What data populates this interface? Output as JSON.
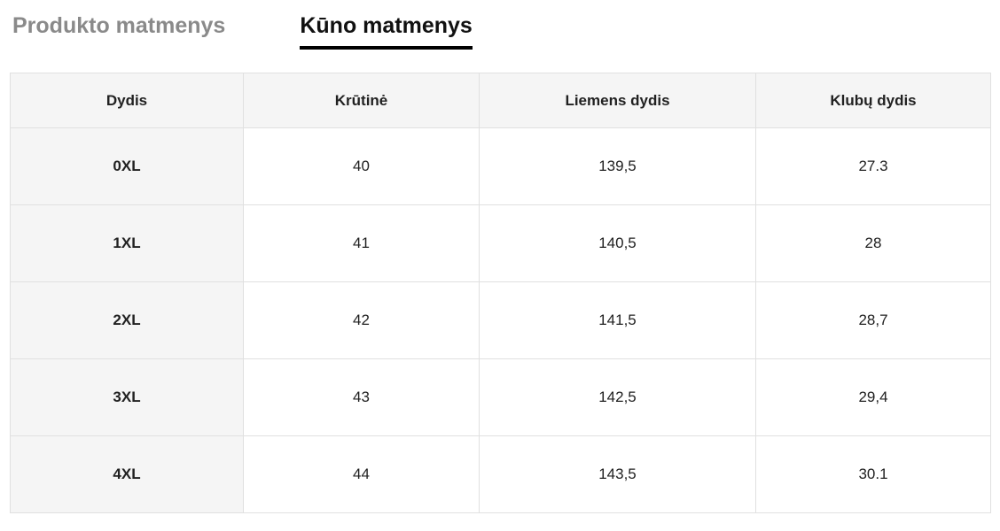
{
  "tabs": [
    {
      "id": "product-dimensions",
      "label": "Produkto matmenys",
      "active": false
    },
    {
      "id": "body-dimensions",
      "label": "Kūno matmenys",
      "active": true
    }
  ],
  "table": {
    "headers": [
      "Dydis",
      "Krūtinė",
      "Liemens dydis",
      "Klubų dydis"
    ],
    "rows": [
      {
        "size": "0XL",
        "values": [
          "40",
          "139,5",
          "27.3"
        ]
      },
      {
        "size": "1XL",
        "values": [
          "41",
          "140,5",
          "28"
        ]
      },
      {
        "size": "2XL",
        "values": [
          "42",
          "141,5",
          "28,7"
        ]
      },
      {
        "size": "3XL",
        "values": [
          "43",
          "142,5",
          "29,4"
        ]
      },
      {
        "size": "4XL",
        "values": [
          "44",
          "143,5",
          "30.1"
        ]
      }
    ]
  },
  "colors": {
    "active_tab_text": "#111111",
    "active_tab_underline": "#000000",
    "inactive_tab_text": "#8a8a8a",
    "header_background": "#f5f5f5",
    "row_label_background": "#f5f5f5",
    "cell_background": "#ffffff",
    "border": "#e0e0e0",
    "cell_text": "#212121"
  }
}
